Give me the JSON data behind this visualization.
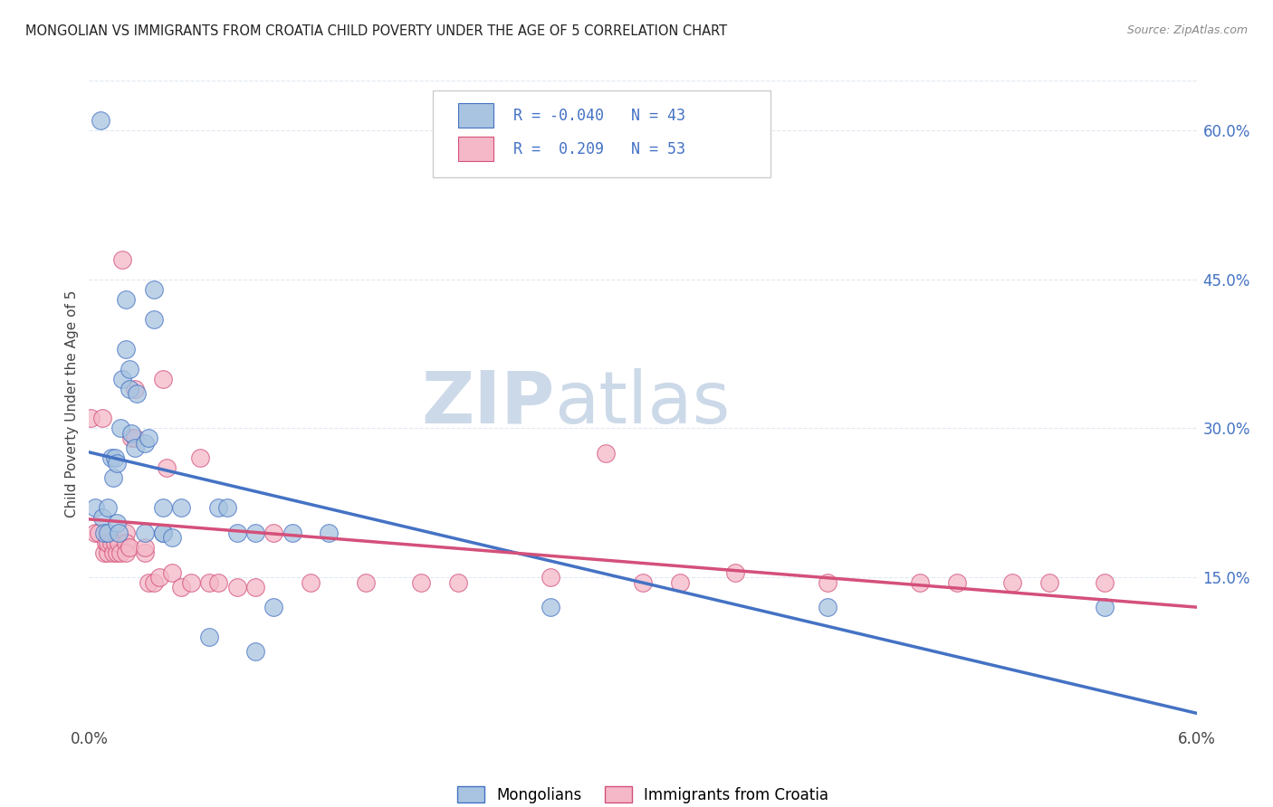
{
  "title": "MONGOLIAN VS IMMIGRANTS FROM CROATIA CHILD POVERTY UNDER THE AGE OF 5 CORRELATION CHART",
  "source": "Source: ZipAtlas.com",
  "ylabel": "Child Poverty Under the Age of 5",
  "xmin": 0.0,
  "xmax": 0.06,
  "ymin": 0.0,
  "ymax": 0.65,
  "y_ticks": [
    0.15,
    0.3,
    0.45,
    0.6
  ],
  "y_tick_labels": [
    "15.0%",
    "30.0%",
    "45.0%",
    "60.0%"
  ],
  "x_ticks": [
    0.0,
    0.01,
    0.02,
    0.03,
    0.04,
    0.05,
    0.06
  ],
  "x_tick_labels": [
    "0.0%",
    "",
    "",
    "",
    "",
    "",
    "6.0%"
  ],
  "legend_label1": "Mongolians",
  "legend_label2": "Immigrants from Croatia",
  "R1": "-0.040",
  "N1": "43",
  "R2": "0.209",
  "N2": "53",
  "color_mongolian": "#a8c4e0",
  "color_croatia": "#f4b8c8",
  "line_color_mongolian": "#4472c4",
  "line_color_croatia": "#d4507a",
  "watermark_zip": "ZIP",
  "watermark_atlas": "atlas",
  "watermark_color": "#ccd9e8",
  "background_color": "#ffffff",
  "grid_color": "#e0e8f0",
  "mongolian_x": [
    0.0003,
    0.0006,
    0.0007,
    0.0008,
    0.001,
    0.001,
    0.0012,
    0.0013,
    0.0014,
    0.0015,
    0.0015,
    0.0016,
    0.0017,
    0.0018,
    0.002,
    0.002,
    0.0022,
    0.0022,
    0.0023,
    0.0025,
    0.0026,
    0.003,
    0.003,
    0.0032,
    0.0035,
    0.0035,
    0.004,
    0.004,
    0.004,
    0.0045,
    0.005,
    0.0065,
    0.007,
    0.0075,
    0.008,
    0.009,
    0.009,
    0.01,
    0.011,
    0.013,
    0.025,
    0.04,
    0.055
  ],
  "mongolian_y": [
    0.22,
    0.61,
    0.21,
    0.195,
    0.195,
    0.22,
    0.27,
    0.25,
    0.27,
    0.265,
    0.205,
    0.195,
    0.3,
    0.35,
    0.43,
    0.38,
    0.34,
    0.36,
    0.295,
    0.28,
    0.335,
    0.285,
    0.195,
    0.29,
    0.41,
    0.44,
    0.22,
    0.195,
    0.195,
    0.19,
    0.22,
    0.09,
    0.22,
    0.22,
    0.195,
    0.075,
    0.195,
    0.12,
    0.195,
    0.195,
    0.12,
    0.12,
    0.12
  ],
  "croatia_x": [
    0.0001,
    0.0003,
    0.0005,
    0.0007,
    0.0008,
    0.0009,
    0.001,
    0.001,
    0.0012,
    0.0013,
    0.0014,
    0.0015,
    0.0016,
    0.0017,
    0.0018,
    0.002,
    0.002,
    0.002,
    0.0022,
    0.0023,
    0.0025,
    0.0025,
    0.003,
    0.003,
    0.0032,
    0.0035,
    0.0038,
    0.004,
    0.0042,
    0.0045,
    0.005,
    0.0055,
    0.006,
    0.0065,
    0.007,
    0.008,
    0.009,
    0.01,
    0.012,
    0.015,
    0.018,
    0.02,
    0.025,
    0.028,
    0.03,
    0.032,
    0.035,
    0.04,
    0.045,
    0.047,
    0.05,
    0.052,
    0.055
  ],
  "croatia_y": [
    0.31,
    0.195,
    0.195,
    0.31,
    0.175,
    0.185,
    0.175,
    0.185,
    0.185,
    0.175,
    0.185,
    0.175,
    0.185,
    0.175,
    0.47,
    0.195,
    0.185,
    0.175,
    0.18,
    0.29,
    0.29,
    0.34,
    0.175,
    0.18,
    0.145,
    0.145,
    0.15,
    0.35,
    0.26,
    0.155,
    0.14,
    0.145,
    0.27,
    0.145,
    0.145,
    0.14,
    0.14,
    0.195,
    0.145,
    0.145,
    0.145,
    0.145,
    0.15,
    0.275,
    0.145,
    0.145,
    0.155,
    0.145,
    0.145,
    0.145,
    0.145,
    0.145,
    0.145
  ]
}
